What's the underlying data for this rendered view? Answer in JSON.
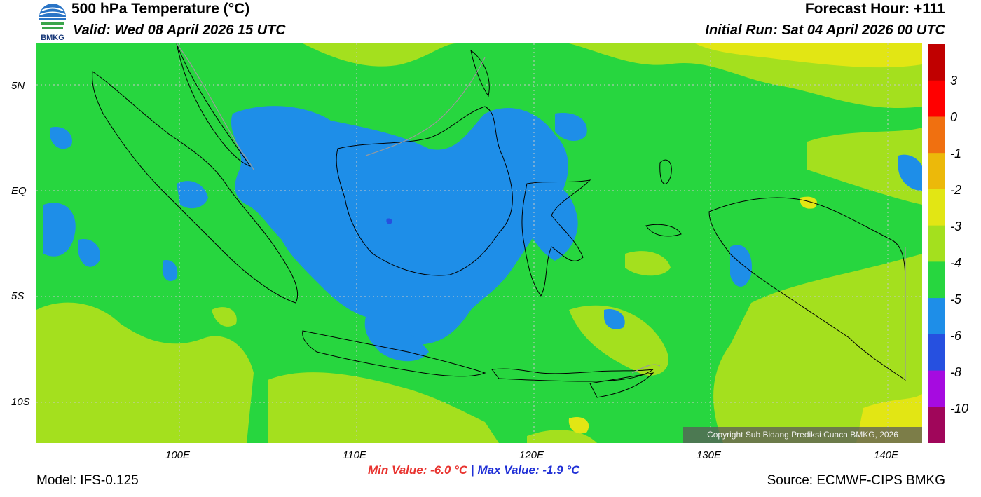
{
  "header": {
    "title": "500 hPa Temperature (°C)",
    "valid": "Valid: Wed 08 April 2026 15 UTC",
    "forecast_hour": "Forecast Hour: +111",
    "initial_run": "Initial Run: Sat 04 April 2026 00 UTC"
  },
  "logo": {
    "text": "BMKG"
  },
  "axes": {
    "lat_labels": [
      "5N",
      "EQ",
      "5S",
      "10S"
    ],
    "lon_labels": [
      "100E",
      "110E",
      "120E",
      "130E",
      "140E"
    ]
  },
  "colorbar": {
    "labels": [
      "3",
      "0",
      "-1",
      "-2",
      "-3",
      "-4",
      "-5",
      "-6",
      "-8",
      "-10"
    ],
    "colors": [
      "#c00000",
      "#ff0000",
      "#f07010",
      "#ecb90a",
      "#e2e614",
      "#a4e01e",
      "#27d63f",
      "#1e8ee8",
      "#2650e0",
      "#a60be0",
      "#a0065a"
    ]
  },
  "stats": {
    "min_label": "Min Value: -6.0 °C",
    "separator": "|",
    "max_label": "Max Value: -1.9 °C"
  },
  "footer": {
    "model": "Model: IFS-0.125",
    "source": "Source: ECMWF-CIPS BMKG",
    "copyright": "Copyright Sub Bidang Prediksi Cuaca BMKG, 2026"
  }
}
